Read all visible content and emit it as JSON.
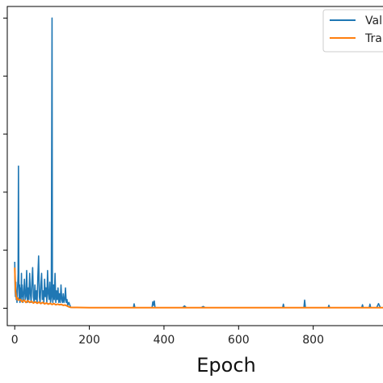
{
  "chart_data": {
    "type": "line",
    "title": "",
    "xlabel": "Epoch",
    "ylabel": "",
    "xlim": [
      -20,
      1000
    ],
    "ylim": [
      -0.06,
      1.04
    ],
    "xticks": [
      0,
      200,
      400,
      600,
      800
    ],
    "grid": false,
    "legend_placement": "top-right",
    "series": [
      {
        "name": "Val",
        "color": "#1f77b4",
        "points": [
          [
            0,
            0.16
          ],
          [
            1,
            0.06
          ],
          [
            2,
            0.04
          ],
          [
            3,
            0.09
          ],
          [
            4,
            0.03
          ],
          [
            5,
            0.05
          ],
          [
            6,
            0.02
          ],
          [
            7,
            0.06
          ],
          [
            8,
            0.08
          ],
          [
            9,
            0.12
          ],
          [
            10,
            0.49
          ],
          [
            11,
            0.1
          ],
          [
            12,
            0.03
          ],
          [
            13,
            0.08
          ],
          [
            14,
            0.02
          ],
          [
            15,
            0.05
          ],
          [
            16,
            0.07
          ],
          [
            17,
            0.03
          ],
          [
            18,
            0.12
          ],
          [
            19,
            0.04
          ],
          [
            20,
            0.08
          ],
          [
            22,
            0.02
          ],
          [
            24,
            0.05
          ],
          [
            26,
            0.1
          ],
          [
            28,
            0.03
          ],
          [
            30,
            0.04
          ],
          [
            32,
            0.13
          ],
          [
            34,
            0.02
          ],
          [
            36,
            0.07
          ],
          [
            38,
            0.03
          ],
          [
            40,
            0.12
          ],
          [
            42,
            0.05
          ],
          [
            44,
            0.02
          ],
          [
            46,
            0.09
          ],
          [
            48,
            0.14
          ],
          [
            50,
            0.04
          ],
          [
            52,
            0.02
          ],
          [
            54,
            0.08
          ],
          [
            56,
            0.03
          ],
          [
            58,
            0.06
          ],
          [
            60,
            0.02
          ],
          [
            62,
            0.11
          ],
          [
            64,
            0.18
          ],
          [
            66,
            0.04
          ],
          [
            68,
            0.02
          ],
          [
            70,
            0.08
          ],
          [
            72,
            0.12
          ],
          [
            74,
            0.03
          ],
          [
            76,
            0.06
          ],
          [
            78,
            0.02
          ],
          [
            80,
            0.1
          ],
          [
            82,
            0.04
          ],
          [
            84,
            0.07
          ],
          [
            86,
            0.02
          ],
          [
            88,
            0.13
          ],
          [
            90,
            0.05
          ],
          [
            92,
            0.03
          ],
          [
            94,
            0.09
          ],
          [
            96,
            0.02
          ],
          [
            98,
            0.04
          ],
          [
            100,
            1.0
          ],
          [
            101,
            0.05
          ],
          [
            102,
            0.02
          ],
          [
            104,
            0.08
          ],
          [
            106,
            0.03
          ],
          [
            108,
            0.12
          ],
          [
            110,
            0.02
          ],
          [
            112,
            0.06
          ],
          [
            114,
            0.03
          ],
          [
            116,
            0.07
          ],
          [
            118,
            0.02
          ],
          [
            120,
            0.05
          ],
          [
            122,
            0.02
          ],
          [
            124,
            0.08
          ],
          [
            126,
            0.03
          ],
          [
            128,
            0.02
          ],
          [
            130,
            0.05
          ],
          [
            132,
            0.02
          ],
          [
            134,
            0.03
          ],
          [
            136,
            0.07
          ],
          [
            138,
            0.02
          ],
          [
            140,
            0.03
          ],
          [
            142,
            0.01
          ],
          [
            145,
            0.02
          ],
          [
            150,
            0.003
          ],
          [
            160,
            0.002
          ],
          [
            180,
            0.002
          ],
          [
            200,
            0.002
          ],
          [
            240,
            0.002
          ],
          [
            280,
            0.002
          ],
          [
            318,
            0.002
          ],
          [
            320,
            0.015
          ],
          [
            322,
            0.002
          ],
          [
            340,
            0.002
          ],
          [
            360,
            0.002
          ],
          [
            368,
            0.002
          ],
          [
            370,
            0.022
          ],
          [
            372,
            0.01
          ],
          [
            374,
            0.025
          ],
          [
            376,
            0.002
          ],
          [
            400,
            0.002
          ],
          [
            450,
            0.002
          ],
          [
            455,
            0.008
          ],
          [
            460,
            0.002
          ],
          [
            500,
            0.002
          ],
          [
            505,
            0.006
          ],
          [
            510,
            0.002
          ],
          [
            550,
            0.002
          ],
          [
            600,
            0.002
          ],
          [
            650,
            0.002
          ],
          [
            700,
            0.002
          ],
          [
            718,
            0.002
          ],
          [
            720,
            0.014
          ],
          [
            722,
            0.002
          ],
          [
            760,
            0.002
          ],
          [
            775,
            0.002
          ],
          [
            777,
            0.028
          ],
          [
            779,
            0.002
          ],
          [
            820,
            0.002
          ],
          [
            840,
            0.002
          ],
          [
            842,
            0.01
          ],
          [
            844,
            0.002
          ],
          [
            880,
            0.002
          ],
          [
            900,
            0.002
          ],
          [
            930,
            0.002
          ],
          [
            932,
            0.012
          ],
          [
            934,
            0.002
          ],
          [
            950,
            0.002
          ],
          [
            952,
            0.014
          ],
          [
            954,
            0.002
          ],
          [
            970,
            0.002
          ],
          [
            975,
            0.016
          ],
          [
            980,
            0.002
          ],
          [
            1000,
            0.002
          ]
        ]
      },
      {
        "name": "Train",
        "color": "#ff7f0e",
        "points": [
          [
            0,
            0.14
          ],
          [
            2,
            0.06
          ],
          [
            4,
            0.04
          ],
          [
            6,
            0.03
          ],
          [
            8,
            0.035
          ],
          [
            10,
            0.028
          ],
          [
            15,
            0.03
          ],
          [
            20,
            0.022
          ],
          [
            25,
            0.028
          ],
          [
            30,
            0.02
          ],
          [
            35,
            0.026
          ],
          [
            40,
            0.02
          ],
          [
            45,
            0.024
          ],
          [
            50,
            0.018
          ],
          [
            55,
            0.022
          ],
          [
            60,
            0.017
          ],
          [
            65,
            0.021
          ],
          [
            70,
            0.016
          ],
          [
            75,
            0.02
          ],
          [
            80,
            0.015
          ],
          [
            85,
            0.018
          ],
          [
            90,
            0.014
          ],
          [
            95,
            0.017
          ],
          [
            100,
            0.013
          ],
          [
            105,
            0.016
          ],
          [
            110,
            0.012
          ],
          [
            115,
            0.014
          ],
          [
            120,
            0.012
          ],
          [
            125,
            0.013
          ],
          [
            130,
            0.01
          ],
          [
            135,
            0.011
          ],
          [
            140,
            0.008
          ],
          [
            145,
            0.005
          ],
          [
            150,
            0.003
          ],
          [
            200,
            0.002
          ],
          [
            300,
            0.002
          ],
          [
            400,
            0.002
          ],
          [
            500,
            0.002
          ],
          [
            600,
            0.002
          ],
          [
            700,
            0.002
          ],
          [
            800,
            0.002
          ],
          [
            900,
            0.002
          ],
          [
            1000,
            0.002
          ]
        ]
      }
    ]
  }
}
